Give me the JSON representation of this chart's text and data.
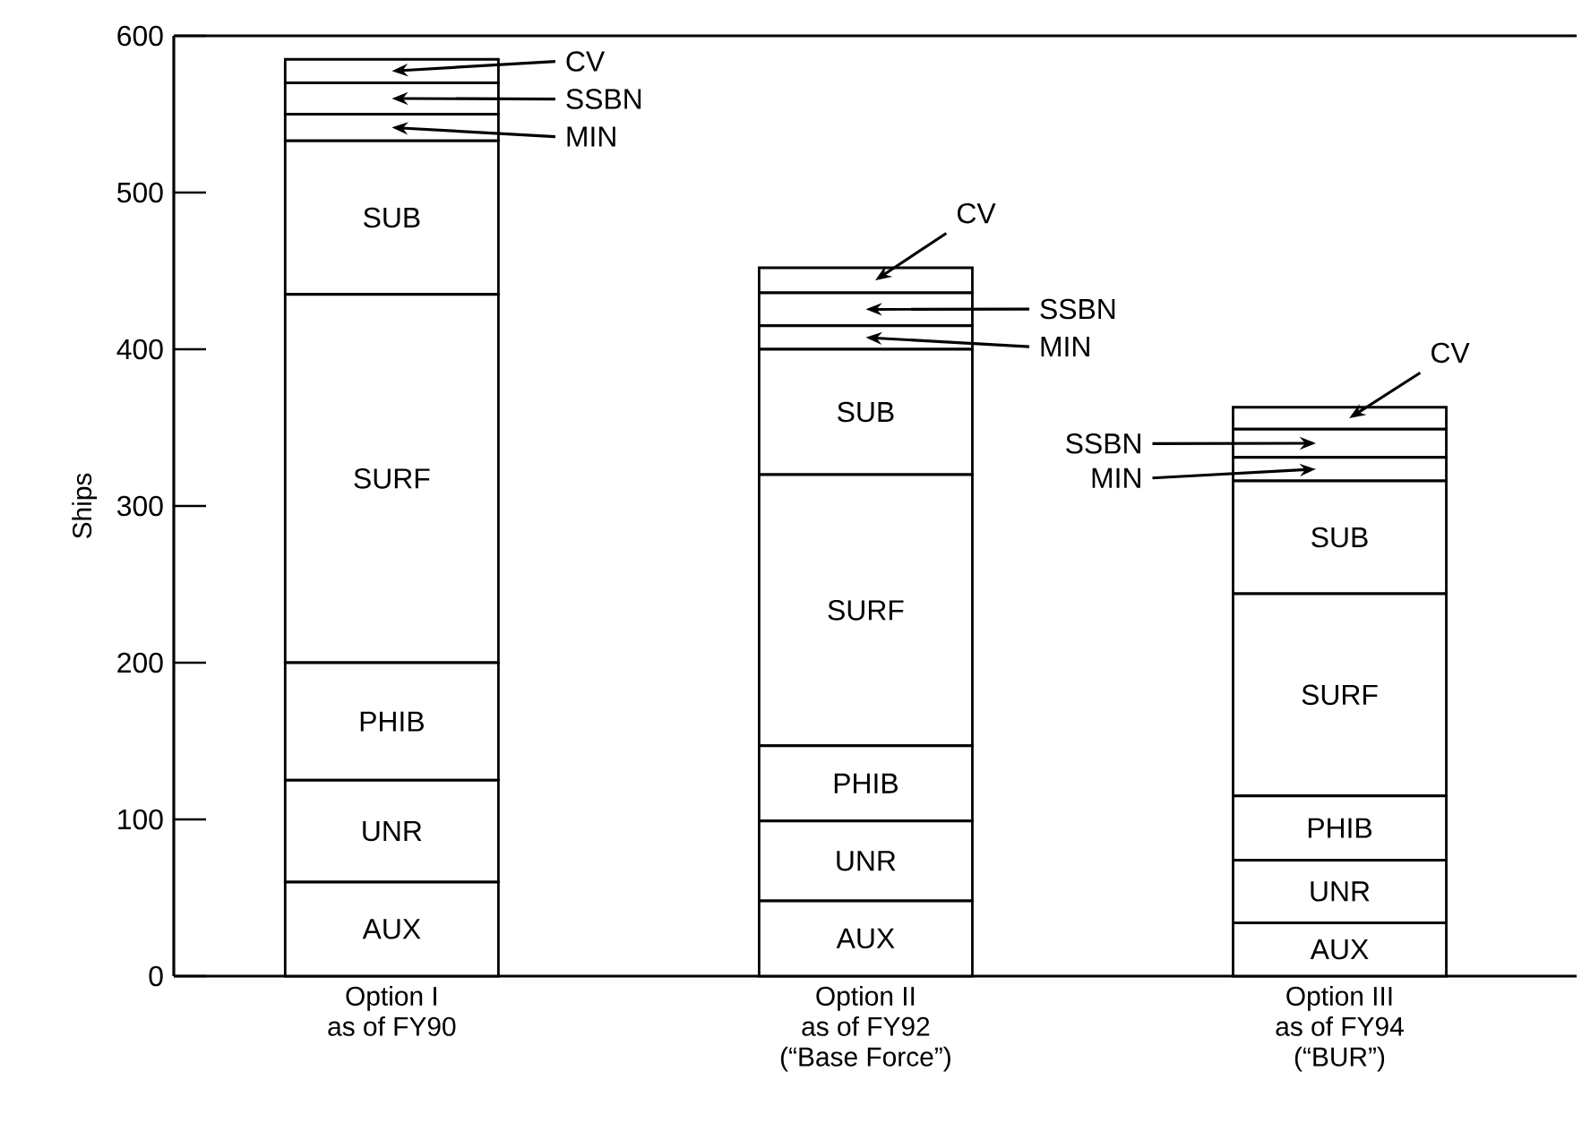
{
  "chart_data": {
    "type": "bar",
    "stacked": true,
    "ylabel": "Ships",
    "categories": [
      "Option I\nas of FY90",
      "Option II\nas of FY92\n(“Base Force”)",
      "Option III\nas of FY94\n(“BUR”)"
    ],
    "series": [
      {
        "name": "AUX",
        "color": "#ffffff",
        "values": [
          60,
          48,
          34
        ]
      },
      {
        "name": "UNR",
        "color": "#ffffff",
        "values": [
          65,
          51,
          40
        ]
      },
      {
        "name": "PHIB",
        "color": "#ffffff",
        "values": [
          75,
          48,
          41
        ]
      },
      {
        "name": "SURF",
        "color": "#ffffff",
        "values": [
          235,
          173,
          129
        ]
      },
      {
        "name": "SUB",
        "color": "#ffffff",
        "values": [
          98,
          80,
          72
        ]
      },
      {
        "name": "MIN",
        "color": "#ffffff",
        "values": [
          17,
          15,
          15
        ]
      },
      {
        "name": "SSBN",
        "color": "#ffffff",
        "values": [
          20,
          21,
          18
        ]
      },
      {
        "name": "CV",
        "color": "#ffffff",
        "values": [
          15,
          16,
          14
        ]
      }
    ],
    "ylim": [
      0,
      600
    ],
    "yticks": [
      0,
      100,
      200,
      300,
      400,
      500,
      600
    ]
  }
}
